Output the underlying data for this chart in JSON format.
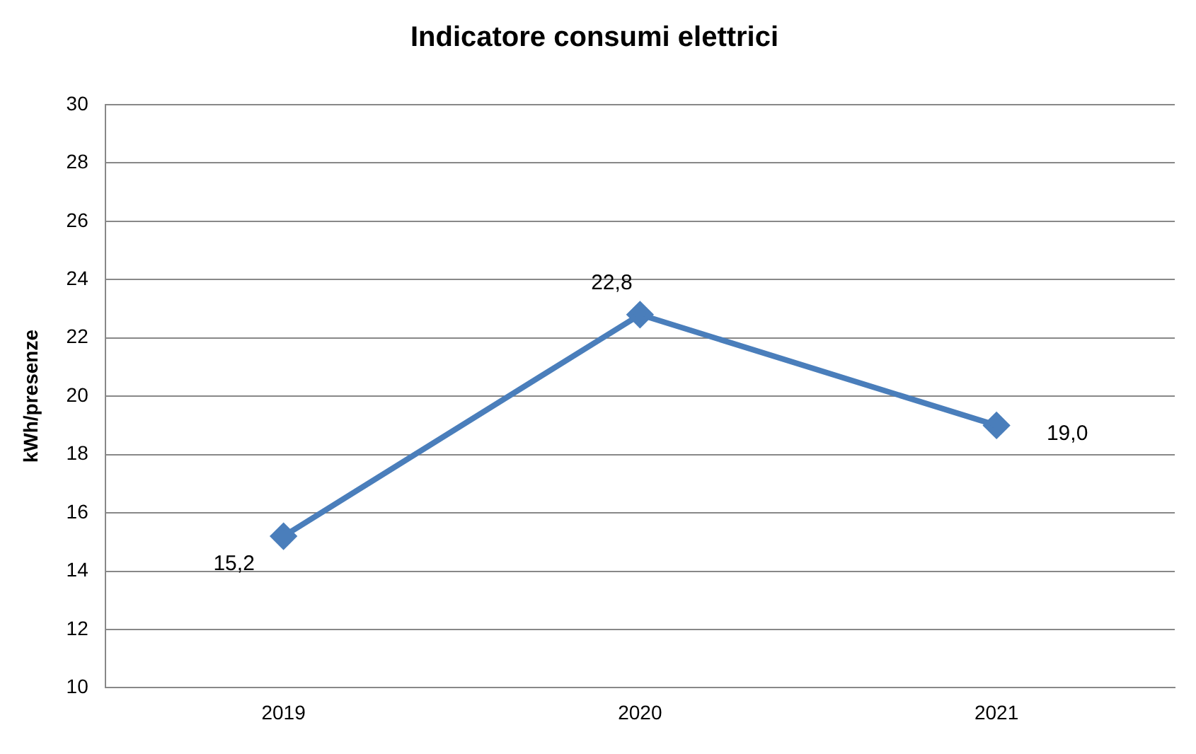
{
  "chart_data": {
    "type": "line",
    "title": "Indicatore consumi elettrici",
    "ylabel": "kWh/presenze",
    "categories": [
      "2019",
      "2020",
      "2021"
    ],
    "series": [
      {
        "color": "#4a7ebb",
        "values": [
          15.2,
          22.8,
          19.0
        ],
        "value_labels": [
          "15,2",
          "22,8",
          "19,0"
        ]
      }
    ],
    "ylim": [
      10,
      30
    ],
    "yticks": [
      10,
      12,
      14,
      16,
      18,
      20,
      22,
      24,
      26,
      28,
      30
    ],
    "grid": "y",
    "legend": false,
    "marker": "diamond",
    "line_style": "solid"
  }
}
